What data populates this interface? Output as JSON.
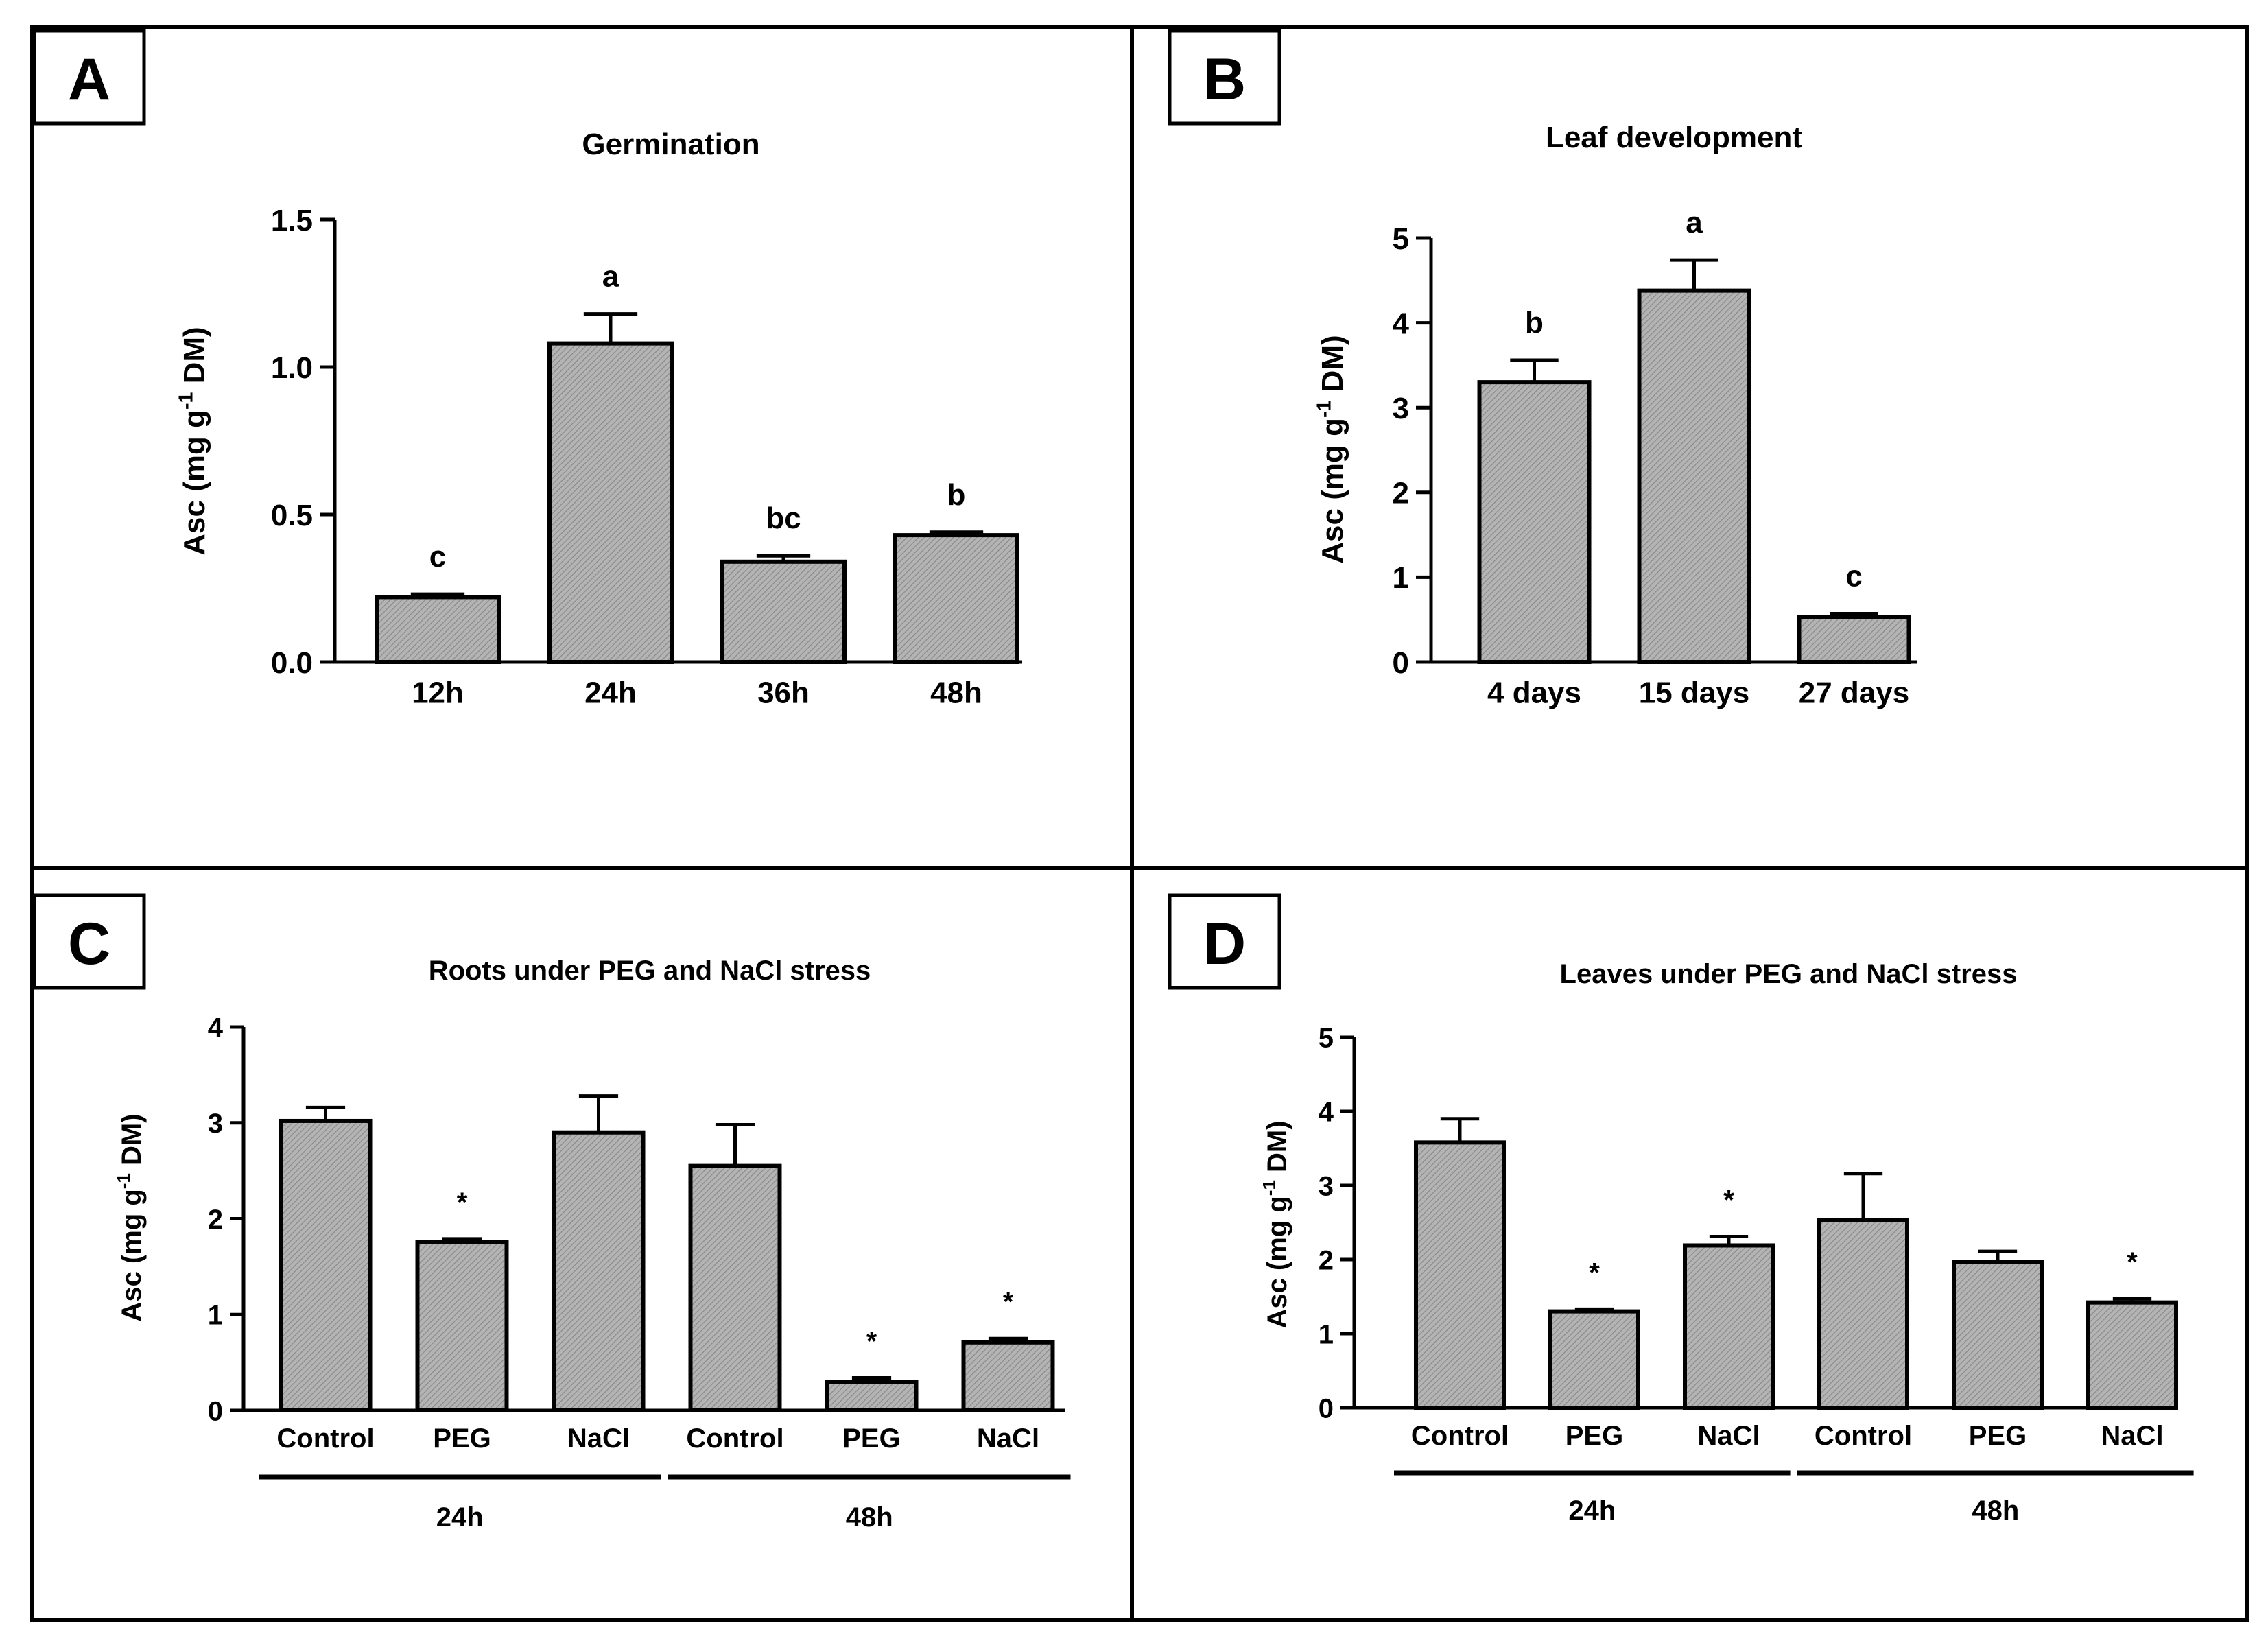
{
  "panels": [
    {
      "id": "A",
      "letter": "A",
      "title": "Germination",
      "ylabel": {
        "main": "Asc (mg g",
        "sup": "-1",
        "tail": " DM)"
      },
      "yticks": [
        "0.0",
        "0.5",
        "1.0",
        "1.5"
      ],
      "groups": [],
      "chart_data": {
        "type": "bar",
        "title": "Germination",
        "ylabel": "Asc (mg g-1 DM)",
        "ylim": [
          0,
          1.5
        ],
        "categories": [
          "12h",
          "24h",
          "36h",
          "48h"
        ],
        "values": [
          0.22,
          1.08,
          0.34,
          0.43
        ],
        "errors": [
          0.01,
          0.1,
          0.02,
          0.01
        ],
        "annotations": [
          "c",
          "a",
          "bc",
          "b"
        ]
      }
    },
    {
      "id": "B",
      "letter": "B",
      "title": "Leaf development",
      "ylabel": {
        "main": "Asc (mg g",
        "sup": "-1",
        "tail": " DM)"
      },
      "yticks": [
        "0",
        "1",
        "2",
        "3",
        "4",
        "5"
      ],
      "groups": [],
      "chart_data": {
        "type": "bar",
        "title": "Leaf development",
        "ylabel": "Asc (mg g-1 DM)",
        "ylim": [
          0,
          5
        ],
        "categories": [
          "4 days",
          "15 days",
          "27 days"
        ],
        "values": [
          3.3,
          4.38,
          0.53
        ],
        "errors": [
          0.26,
          0.36,
          0.04
        ],
        "annotations": [
          "b",
          "a",
          "c"
        ]
      }
    },
    {
      "id": "C",
      "letter": "C",
      "title": "Roots under PEG and NaCl stress",
      "ylabel": {
        "main": "Asc (mg g",
        "sup": "-1",
        "tail": " DM)"
      },
      "yticks": [
        "0",
        "1",
        "2",
        "3",
        "4"
      ],
      "groups": [
        {
          "label": "24h",
          "from": 0,
          "to": 2
        },
        {
          "label": "48h",
          "from": 3,
          "to": 5
        }
      ],
      "chart_data": {
        "type": "bar",
        "title": "Roots under PEG and NaCl stress",
        "ylabel": "Asc (mg g-1 DM)",
        "ylim": [
          0,
          4
        ],
        "categories": [
          "Control",
          "PEG",
          "NaCl",
          "Control",
          "PEG",
          "NaCl"
        ],
        "values": [
          3.02,
          1.76,
          2.9,
          2.55,
          0.3,
          0.71
        ],
        "errors": [
          0.14,
          0.03,
          0.38,
          0.43,
          0.04,
          0.04
        ],
        "annotations": [
          "",
          "*",
          "",
          "",
          "*",
          "*"
        ]
      }
    },
    {
      "id": "D",
      "letter": "D",
      "title": "Leaves under PEG and NaCl stress",
      "ylabel": {
        "main": "Asc (mg g",
        "sup": "-1",
        "tail": " DM)"
      },
      "yticks": [
        "0",
        "1",
        "2",
        "3",
        "4",
        "5"
      ],
      "groups": [
        {
          "label": "24h",
          "from": 0,
          "to": 2
        },
        {
          "label": "48h",
          "from": 3,
          "to": 5
        }
      ],
      "chart_data": {
        "type": "bar",
        "title": "Leaves under PEG and NaCl stress",
        "ylabel": "Asc (mg g-1 DM)",
        "ylim": [
          0,
          5
        ],
        "categories": [
          "Control",
          "PEG",
          "NaCl",
          "Control",
          "PEG",
          "NaCl"
        ],
        "values": [
          3.58,
          1.3,
          2.19,
          2.53,
          1.97,
          1.42
        ],
        "errors": [
          0.32,
          0.03,
          0.12,
          0.63,
          0.14,
          0.05
        ],
        "annotations": [
          "",
          "*",
          "*",
          "",
          "",
          "*"
        ]
      }
    }
  ],
  "colors": {
    "bar_fill": "#a9a9a9",
    "bar_stroke": "#000000",
    "frame": "#000000"
  }
}
